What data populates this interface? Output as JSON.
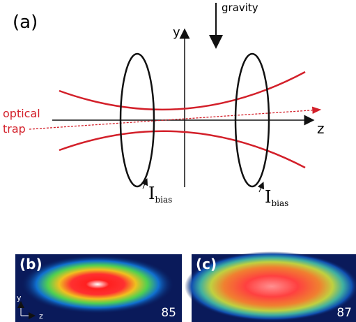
{
  "panel_a": {
    "label": "(a)",
    "gravity": "gravity",
    "y_axis": "y",
    "z_axis": "z",
    "trap_label": [
      "optical",
      "trap"
    ],
    "coil_labels": [
      {
        "symbol": "I",
        "subscript": "bias"
      },
      {
        "symbol": "I",
        "subscript": "bias"
      }
    ]
  },
  "panel_b": {
    "label": "(b)",
    "axis_y": "y",
    "axis_z": "z",
    "number": 85
  },
  "panel_c": {
    "label": "(c)",
    "number": 87
  }
}
